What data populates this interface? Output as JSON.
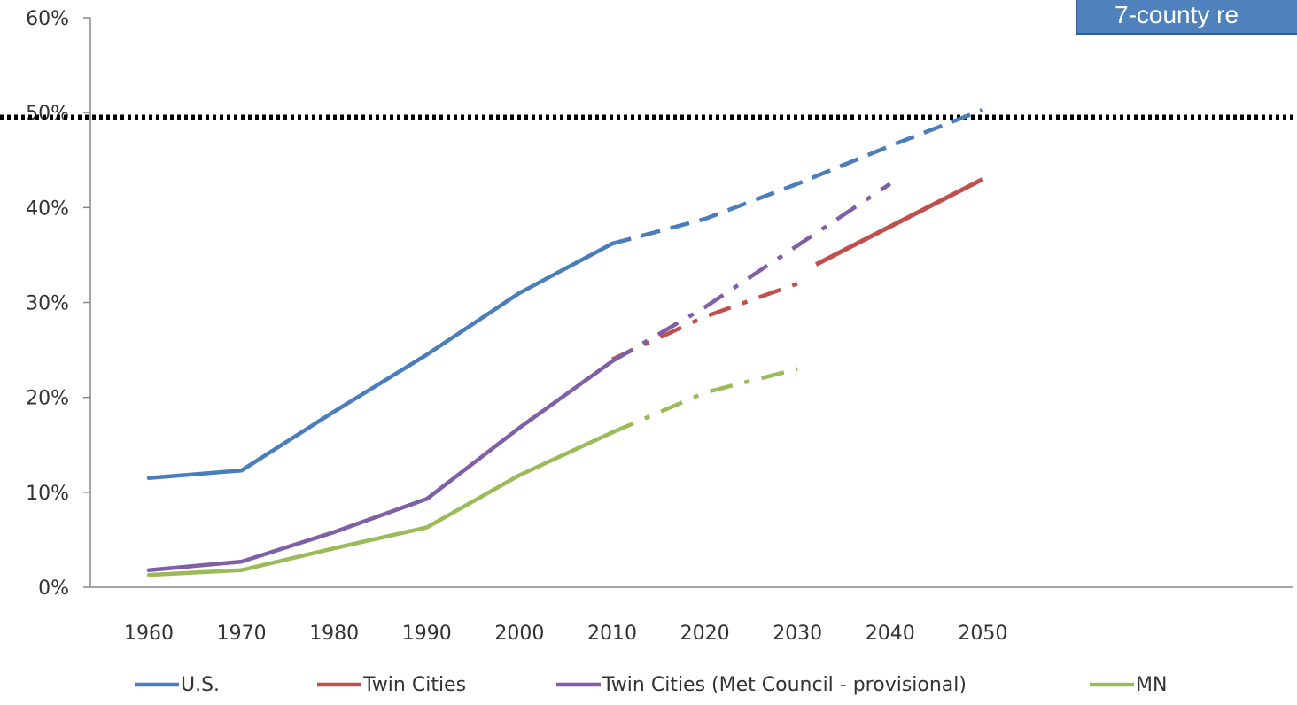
{
  "chart_data": {
    "type": "line",
    "title": "",
    "xlabel": "",
    "ylabel": "",
    "x": [
      1960,
      1970,
      1980,
      1990,
      2000,
      2010,
      2020,
      2030,
      2040,
      2050
    ],
    "x_tick_labels": [
      "1960",
      "1970",
      "1980",
      "1990",
      "2000",
      "2010",
      "2020",
      "2030",
      "2040",
      "2050"
    ],
    "y_tick_labels": [
      "0%",
      "10%",
      "20%",
      "30%",
      "40%",
      "50%",
      "60%"
    ],
    "y_ticks": [
      0,
      10,
      20,
      30,
      40,
      50,
      60
    ],
    "ylim": [
      0,
      60
    ],
    "grid": false,
    "legend_position": "bottom",
    "reference_line": {
      "y": 49.5,
      "style": "dotted",
      "color": "#000000"
    },
    "series": [
      {
        "name": "U.S.",
        "color": "#4A7EBB",
        "solid": [
          [
            1960,
            11.5
          ],
          [
            1970,
            12.3
          ],
          [
            1980,
            18.5
          ],
          [
            1990,
            24.5
          ],
          [
            2000,
            31
          ],
          [
            2010,
            36.2
          ]
        ],
        "projected": [
          [
            2010,
            36.2
          ],
          [
            2020,
            38.8
          ],
          [
            2030,
            42.5
          ],
          [
            2040,
            46.5
          ],
          [
            2050,
            50.3
          ]
        ],
        "projected_style": "dashed"
      },
      {
        "name": "Twin Cities",
        "color": "#C0504D",
        "solid": [],
        "projected": [
          [
            2010,
            24
          ],
          [
            2020,
            28.5
          ],
          [
            2030,
            32
          ]
        ],
        "projected_style": "dashdot",
        "extension": [
          [
            2032,
            34
          ],
          [
            2050,
            43
          ]
        ]
      },
      {
        "name": "Twin Cities (Met Council - provisional)",
        "color": "#7F5FA6",
        "solid": [
          [
            1960,
            1.8
          ],
          [
            1970,
            2.7
          ],
          [
            1980,
            5.8
          ],
          [
            1990,
            9.3
          ],
          [
            2000,
            16.8
          ],
          [
            2010,
            23.8
          ]
        ],
        "projected": [
          [
            2010,
            23.8
          ],
          [
            2020,
            29.5
          ],
          [
            2030,
            36
          ],
          [
            2040,
            42.5
          ]
        ],
        "projected_style": "dashdot"
      },
      {
        "name": "MN",
        "color": "#9BBB59",
        "solid": [
          [
            1960,
            1.3
          ],
          [
            1970,
            1.8
          ],
          [
            1980,
            4.1
          ],
          [
            1990,
            6.3
          ],
          [
            2000,
            11.8
          ],
          [
            2010,
            16.3
          ]
        ],
        "projected": [
          [
            2010,
            16.3
          ],
          [
            2020,
            20.5
          ],
          [
            2030,
            23
          ]
        ],
        "projected_style": "dashdot"
      }
    ],
    "callout": {
      "text": "7-county re",
      "background": "#4F81BD",
      "border": "#2F5B8F"
    }
  }
}
